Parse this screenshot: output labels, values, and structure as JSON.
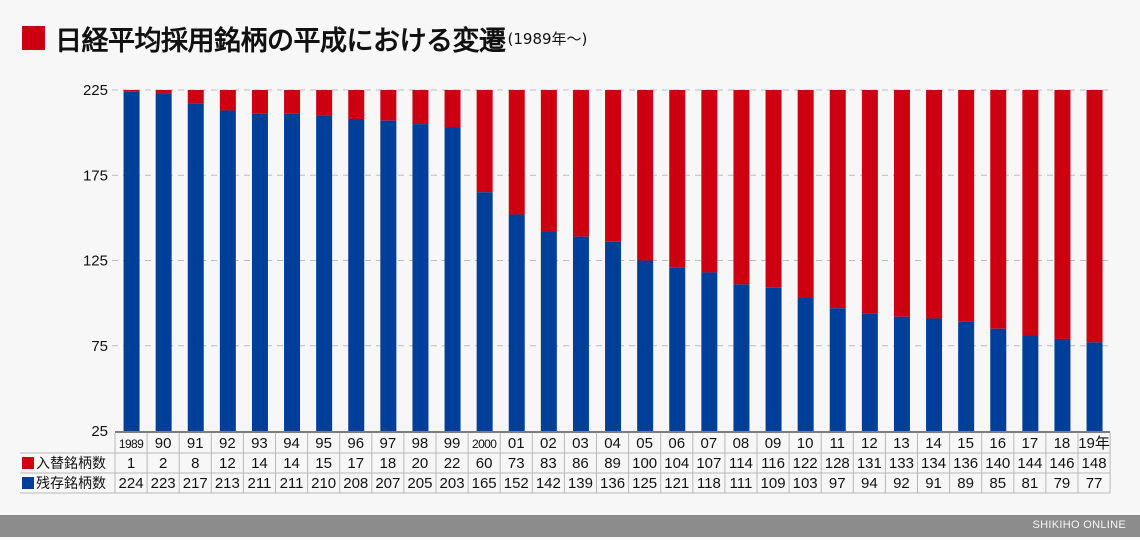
{
  "header": {
    "title": "日経平均採用銘柄の平成における変遷",
    "subtitle": "(1989年〜)"
  },
  "footer": {
    "brand": "SHIKIHO ONLINE"
  },
  "colors": {
    "replaced": "#cc0010",
    "remaining": "#003f99",
    "grid": "#bdbdbd",
    "table_line": "#b8b8b8"
  },
  "chart_data": {
    "type": "bar",
    "stacked": true,
    "title": "日経平均採用銘柄の平成における変遷(1989年〜)",
    "xlabel": "",
    "ylabel": "",
    "ylim": [
      25,
      225
    ],
    "yticks": [
      225,
      175,
      125,
      75,
      25
    ],
    "grid": true,
    "categories": [
      "1989",
      "90",
      "91",
      "92",
      "93",
      "94",
      "95",
      "96",
      "97",
      "98",
      "99",
      "2000",
      "01",
      "02",
      "03",
      "04",
      "05",
      "06",
      "07",
      "08",
      "09",
      "10",
      "11",
      "12",
      "13",
      "14",
      "15",
      "16",
      "17",
      "18",
      "19年"
    ],
    "series": [
      {
        "name": "入替銘柄数",
        "color": "#cc0010",
        "values": [
          1,
          2,
          8,
          12,
          14,
          14,
          15,
          17,
          18,
          20,
          22,
          60,
          73,
          83,
          86,
          89,
          100,
          104,
          107,
          114,
          116,
          122,
          128,
          131,
          133,
          134,
          136,
          140,
          144,
          146,
          148
        ]
      },
      {
        "name": "残存銘柄数",
        "color": "#003f99",
        "values": [
          224,
          223,
          217,
          213,
          211,
          211,
          210,
          208,
          207,
          205,
          203,
          165,
          152,
          142,
          139,
          136,
          125,
          121,
          118,
          111,
          109,
          103,
          97,
          94,
          92,
          91,
          89,
          85,
          81,
          79,
          77
        ]
      }
    ],
    "table_rows": [
      "入替銘柄数",
      "残存銘柄数"
    ],
    "total": 225
  }
}
